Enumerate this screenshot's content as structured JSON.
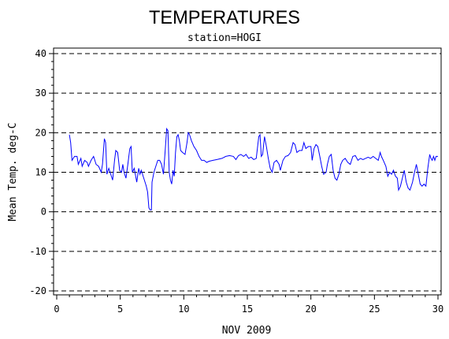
{
  "chart_data": {
    "type": "line",
    "title": "TEMPERATURES",
    "subtitle": "station=HOGI",
    "xlabel": "NOV 2009",
    "ylabel": "Mean Temp. deg-C",
    "xlim": [
      0,
      30
    ],
    "ylim": [
      -20,
      40
    ],
    "x_ticks": [
      0,
      5,
      10,
      15,
      20,
      25,
      30
    ],
    "y_ticks": [
      -20,
      -10,
      0,
      10,
      20,
      30,
      40
    ],
    "grid": "horizontal dashed at y ticks",
    "series": [
      {
        "color": "#0000ff",
        "points": [
          [
            1.0,
            19.5
          ],
          [
            1.1,
            17.5
          ],
          [
            1.2,
            13.0
          ],
          [
            1.4,
            14.0
          ],
          [
            1.6,
            14.0
          ],
          [
            1.7,
            12.0
          ],
          [
            1.9,
            13.5
          ],
          [
            2.0,
            11.5
          ],
          [
            2.2,
            13.0
          ],
          [
            2.4,
            12.5
          ],
          [
            2.5,
            11.5
          ],
          [
            2.7,
            13.0
          ],
          [
            2.9,
            14.0
          ],
          [
            3.1,
            12.0
          ],
          [
            3.3,
            11.5
          ],
          [
            3.5,
            10.0
          ],
          [
            3.6,
            12.0
          ],
          [
            3.75,
            18.5
          ],
          [
            3.85,
            17.5
          ],
          [
            3.95,
            9.5
          ],
          [
            4.1,
            11.0
          ],
          [
            4.3,
            9.0
          ],
          [
            4.4,
            8.0
          ],
          [
            4.55,
            13.0
          ],
          [
            4.65,
            15.5
          ],
          [
            4.8,
            15.0
          ],
          [
            4.95,
            10.5
          ],
          [
            5.1,
            10.0
          ],
          [
            5.2,
            12.0
          ],
          [
            5.3,
            10.0
          ],
          [
            5.45,
            8.5
          ],
          [
            5.6,
            12.0
          ],
          [
            5.75,
            16.0
          ],
          [
            5.85,
            16.5
          ],
          [
            5.95,
            10.0
          ],
          [
            6.1,
            11.0
          ],
          [
            6.3,
            7.5
          ],
          [
            6.45,
            11.0
          ],
          [
            6.55,
            9.5
          ],
          [
            6.65,
            10.5
          ],
          [
            6.8,
            9.0
          ],
          [
            6.95,
            7.5
          ],
          [
            7.05,
            6.5
          ],
          [
            7.15,
            5.0
          ],
          [
            7.25,
            1.0
          ],
          [
            7.35,
            0.5
          ],
          [
            7.45,
            0.5
          ],
          [
            7.5,
            7.5
          ],
          [
            7.65,
            10.0
          ],
          [
            7.8,
            11.5
          ],
          [
            7.95,
            13.0
          ],
          [
            8.1,
            13.0
          ],
          [
            8.25,
            12.0
          ],
          [
            8.4,
            9.5
          ],
          [
            8.55,
            16.0
          ],
          [
            8.65,
            21.0
          ],
          [
            8.75,
            20.5
          ],
          [
            8.85,
            10.0
          ],
          [
            8.95,
            8.0
          ],
          [
            9.05,
            7.0
          ],
          [
            9.15,
            10.5
          ],
          [
            9.25,
            9.0
          ],
          [
            9.35,
            15.0
          ],
          [
            9.45,
            19.0
          ],
          [
            9.55,
            19.5
          ],
          [
            9.65,
            18.0
          ],
          [
            9.75,
            15.5
          ],
          [
            9.9,
            15.0
          ],
          [
            10.1,
            14.5
          ],
          [
            10.25,
            17.5
          ],
          [
            10.35,
            20.0
          ],
          [
            10.45,
            19.5
          ],
          [
            10.6,
            18.0
          ],
          [
            10.8,
            16.5
          ],
          [
            11.0,
            15.5
          ],
          [
            11.2,
            14.0
          ],
          [
            11.4,
            13.0
          ],
          [
            11.6,
            13.0
          ],
          [
            11.8,
            12.5
          ],
          [
            12.0,
            12.8
          ],
          [
            12.3,
            13.0
          ],
          [
            12.6,
            13.2
          ],
          [
            13.0,
            13.5
          ],
          [
            13.3,
            14.0
          ],
          [
            13.6,
            14.2
          ],
          [
            13.9,
            14.0
          ],
          [
            14.1,
            13.2
          ],
          [
            14.3,
            14.2
          ],
          [
            14.5,
            14.5
          ],
          [
            14.7,
            14.0
          ],
          [
            14.9,
            14.5
          ],
          [
            15.1,
            13.5
          ],
          [
            15.3,
            13.8
          ],
          [
            15.5,
            13.2
          ],
          [
            15.7,
            13.5
          ],
          [
            15.9,
            19.0
          ],
          [
            16.0,
            19.5
          ],
          [
            16.1,
            14.0
          ],
          [
            16.2,
            14.5
          ],
          [
            16.35,
            19.0
          ],
          [
            16.5,
            16.5
          ],
          [
            16.65,
            13.5
          ],
          [
            16.8,
            11.0
          ],
          [
            16.95,
            10.0
          ],
          [
            17.1,
            12.5
          ],
          [
            17.3,
            13.0
          ],
          [
            17.5,
            12.0
          ],
          [
            17.6,
            10.5
          ],
          [
            17.8,
            13.0
          ],
          [
            18.0,
            14.0
          ],
          [
            18.2,
            14.2
          ],
          [
            18.4,
            15.0
          ],
          [
            18.6,
            17.5
          ],
          [
            18.75,
            17.0
          ],
          [
            18.9,
            15.0
          ],
          [
            19.1,
            15.5
          ],
          [
            19.3,
            15.5
          ],
          [
            19.45,
            17.5
          ],
          [
            19.6,
            16.0
          ],
          [
            19.8,
            16.5
          ],
          [
            20.0,
            16.5
          ],
          [
            20.1,
            13.0
          ],
          [
            20.25,
            16.0
          ],
          [
            20.4,
            17.0
          ],
          [
            20.55,
            16.5
          ],
          [
            20.7,
            14.0
          ],
          [
            20.85,
            11.5
          ],
          [
            21.0,
            9.5
          ],
          [
            21.2,
            10.0
          ],
          [
            21.3,
            12.0
          ],
          [
            21.45,
            14.0
          ],
          [
            21.6,
            14.5
          ],
          [
            21.75,
            10.5
          ],
          [
            21.9,
            8.5
          ],
          [
            22.05,
            8.0
          ],
          [
            22.2,
            9.5
          ],
          [
            22.35,
            12.0
          ],
          [
            22.5,
            13.0
          ],
          [
            22.7,
            13.5
          ],
          [
            22.9,
            12.5
          ],
          [
            23.1,
            12.0
          ],
          [
            23.3,
            14.0
          ],
          [
            23.5,
            14.2
          ],
          [
            23.7,
            13.0
          ],
          [
            23.9,
            13.5
          ],
          [
            24.1,
            13.2
          ],
          [
            24.3,
            13.5
          ],
          [
            24.5,
            13.8
          ],
          [
            24.7,
            13.5
          ],
          [
            24.9,
            14.0
          ],
          [
            25.1,
            13.5
          ],
          [
            25.3,
            13.0
          ],
          [
            25.45,
            15.0
          ],
          [
            25.55,
            14.0
          ],
          [
            25.7,
            13.0
          ],
          [
            25.9,
            11.5
          ],
          [
            26.05,
            9.0
          ],
          [
            26.2,
            10.0
          ],
          [
            26.35,
            9.5
          ],
          [
            26.5,
            10.5
          ],
          [
            26.65,
            9.0
          ],
          [
            26.8,
            8.5
          ],
          [
            26.9,
            5.5
          ],
          [
            27.05,
            6.5
          ],
          [
            27.2,
            8.5
          ],
          [
            27.35,
            10.5
          ],
          [
            27.5,
            7.5
          ],
          [
            27.65,
            6.0
          ],
          [
            27.8,
            5.5
          ],
          [
            28.0,
            7.5
          ],
          [
            28.15,
            10.0
          ],
          [
            28.3,
            12.0
          ],
          [
            28.45,
            9.5
          ],
          [
            28.6,
            7.0
          ],
          [
            28.75,
            6.5
          ],
          [
            28.9,
            7.0
          ],
          [
            29.05,
            6.5
          ],
          [
            29.2,
            11.0
          ],
          [
            29.35,
            14.5
          ],
          [
            29.45,
            13.5
          ],
          [
            29.55,
            13.0
          ],
          [
            29.65,
            14.0
          ],
          [
            29.75,
            13.0
          ],
          [
            29.85,
            14.0
          ],
          [
            30.0,
            14.0
          ]
        ]
      }
    ]
  }
}
